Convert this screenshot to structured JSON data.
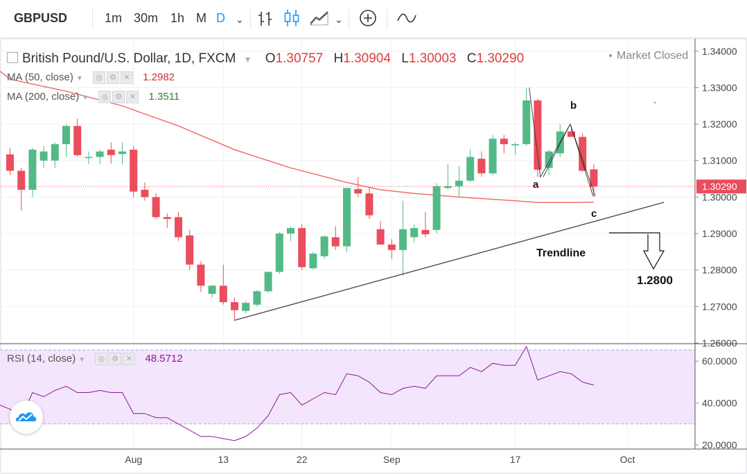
{
  "toolbar": {
    "symbol": "GBPUSD",
    "intervals": [
      "1m",
      "30m",
      "1h",
      "M",
      "D"
    ],
    "active_interval": "D"
  },
  "legend": {
    "title": "British Pound/U.S. Dollar, 1D, FXCM",
    "open_label": "O",
    "open": "1.30757",
    "high_label": "H",
    "high": "1.30904",
    "low_label": "L",
    "low": "1.30003",
    "close_label": "C",
    "close": "1.30290",
    "ma50_label": "MA (50, close)",
    "ma50_value": "1.2982",
    "ma200_label": "MA (200, close)",
    "ma200_value": "1.3511",
    "rsi_label": "RSI (14, close)",
    "rsi_value": "48.5712",
    "market_status": "Market Closed"
  },
  "colors": {
    "up": "#53b987",
    "down": "#eb4d5c",
    "ma": "#f26d6d",
    "rsi": "#8e1599",
    "rsi_band": "#f3e5fb",
    "ma50_text": "#d32f2f",
    "ma200_text": "#2e7d32",
    "rsi_text": "#8e1599"
  },
  "chart_data": {
    "type": "candlestick",
    "price_axis": {
      "ylim": [
        1.26,
        1.343
      ],
      "ticks": [
        "1.34000",
        "1.33000",
        "1.32000",
        "1.31000",
        "1.30000",
        "1.29000",
        "1.28000",
        "1.27000",
        "1.26000"
      ],
      "last_price_label": "1.30290"
    },
    "rsi_axis": {
      "ylim": [
        18,
        68
      ],
      "ticks": [
        "60.0000",
        "40.0000",
        "20.0000"
      ],
      "band": [
        30,
        70
      ]
    },
    "x_axis_ticks": [
      {
        "label": "Aug",
        "i": 11
      },
      {
        "label": "13",
        "i": 19
      },
      {
        "label": "22",
        "i": 26
      },
      {
        "label": "Sep",
        "i": 34
      },
      {
        "label": "17",
        "i": 45
      },
      {
        "label": "Oct",
        "i": 55
      }
    ],
    "candles": [
      {
        "o": 1.3117,
        "h": 1.3135,
        "l": 1.306,
        "c": 1.3072
      },
      {
        "o": 1.3072,
        "h": 1.308,
        "l": 1.2962,
        "c": 1.302
      },
      {
        "o": 1.302,
        "h": 1.3135,
        "l": 1.3,
        "c": 1.313
      },
      {
        "o": 1.31,
        "h": 1.314,
        "l": 1.308,
        "c": 1.3125
      },
      {
        "o": 1.31,
        "h": 1.315,
        "l": 1.308,
        "c": 1.3145
      },
      {
        "o": 1.3145,
        "h": 1.32,
        "l": 1.311,
        "c": 1.3195
      },
      {
        "o": 1.3195,
        "h": 1.3215,
        "l": 1.311,
        "c": 1.3115
      },
      {
        "o": 1.3107,
        "h": 1.3125,
        "l": 1.309,
        "c": 1.311
      },
      {
        "o": 1.311,
        "h": 1.313,
        "l": 1.309,
        "c": 1.3125
      },
      {
        "o": 1.313,
        "h": 1.315,
        "l": 1.3092,
        "c": 1.3115
      },
      {
        "o": 1.3118,
        "h": 1.315,
        "l": 1.309,
        "c": 1.3125
      },
      {
        "o": 1.313,
        "h": 1.314,
        "l": 1.3,
        "c": 1.3015
      },
      {
        "o": 1.302,
        "h": 1.304,
        "l": 1.299,
        "c": 1.3
      },
      {
        "o": 1.3,
        "h": 1.301,
        "l": 1.294,
        "c": 1.2945
      },
      {
        "o": 1.2945,
        "h": 1.2955,
        "l": 1.2915,
        "c": 1.294
      },
      {
        "o": 1.2945,
        "h": 1.296,
        "l": 1.288,
        "c": 1.289
      },
      {
        "o": 1.2895,
        "h": 1.291,
        "l": 1.28,
        "c": 1.2815
      },
      {
        "o": 1.2815,
        "h": 1.2825,
        "l": 1.274,
        "c": 1.2757
      },
      {
        "o": 1.2735,
        "h": 1.276,
        "l": 1.2725,
        "c": 1.2757
      },
      {
        "o": 1.2757,
        "h": 1.2815,
        "l": 1.2705,
        "c": 1.2712
      },
      {
        "o": 1.2712,
        "h": 1.2725,
        "l": 1.266,
        "c": 1.269
      },
      {
        "o": 1.2688,
        "h": 1.2715,
        "l": 1.2682,
        "c": 1.271
      },
      {
        "o": 1.2705,
        "h": 1.2745,
        "l": 1.27,
        "c": 1.2742
      },
      {
        "o": 1.2742,
        "h": 1.2795,
        "l": 1.2738,
        "c": 1.2795
      },
      {
        "o": 1.2795,
        "h": 1.2905,
        "l": 1.279,
        "c": 1.29
      },
      {
        "o": 1.29,
        "h": 1.292,
        "l": 1.288,
        "c": 1.2915
      },
      {
        "o": 1.2915,
        "h": 1.2925,
        "l": 1.28,
        "c": 1.2808
      },
      {
        "o": 1.2805,
        "h": 1.285,
        "l": 1.28,
        "c": 1.2845
      },
      {
        "o": 1.2838,
        "h": 1.2895,
        "l": 1.283,
        "c": 1.2892
      },
      {
        "o": 1.289,
        "h": 1.292,
        "l": 1.2855,
        "c": 1.2865
      },
      {
        "o": 1.2865,
        "h": 1.3025,
        "l": 1.285,
        "c": 1.3025
      },
      {
        "o": 1.3022,
        "h": 1.3055,
        "l": 1.3,
        "c": 1.301
      },
      {
        "o": 1.301,
        "h": 1.3025,
        "l": 1.294,
        "c": 1.295
      },
      {
        "o": 1.2912,
        "h": 1.2935,
        "l": 1.287,
        "c": 1.287
      },
      {
        "o": 1.287,
        "h": 1.2885,
        "l": 1.283,
        "c": 1.2855
      },
      {
        "o": 1.2855,
        "h": 1.299,
        "l": 1.2785,
        "c": 1.2912
      },
      {
        "o": 1.289,
        "h": 1.2925,
        "l": 1.2875,
        "c": 1.2915
      },
      {
        "o": 1.291,
        "h": 1.296,
        "l": 1.289,
        "c": 1.2898
      },
      {
        "o": 1.291,
        "h": 1.3038,
        "l": 1.29,
        "c": 1.303
      },
      {
        "o": 1.3025,
        "h": 1.309,
        "l": 1.302,
        "c": 1.303
      },
      {
        "o": 1.303,
        "h": 1.3085,
        "l": 1.3,
        "c": 1.3045
      },
      {
        "o": 1.3045,
        "h": 1.313,
        "l": 1.304,
        "c": 1.311
      },
      {
        "o": 1.3105,
        "h": 1.3125,
        "l": 1.3055,
        "c": 1.3065
      },
      {
        "o": 1.3065,
        "h": 1.317,
        "l": 1.306,
        "c": 1.316
      },
      {
        "o": 1.316,
        "h": 1.317,
        "l": 1.312,
        "c": 1.3145
      },
      {
        "o": 1.3142,
        "h": 1.315,
        "l": 1.3115,
        "c": 1.3145
      },
      {
        "o": 1.3145,
        "h": 1.33,
        "l": 1.314,
        "c": 1.3265
      },
      {
        "o": 1.3265,
        "h": 1.327,
        "l": 1.3055,
        "c": 1.3075
      },
      {
        "o": 1.308,
        "h": 1.313,
        "l": 1.306,
        "c": 1.3125
      },
      {
        "o": 1.312,
        "h": 1.32,
        "l": 1.311,
        "c": 1.318
      },
      {
        "o": 1.318,
        "h": 1.3195,
        "l": 1.3165,
        "c": 1.3165
      },
      {
        "o": 1.3165,
        "h": 1.3175,
        "l": 1.307,
        "c": 1.3072
      },
      {
        "o": 1.3076,
        "h": 1.309,
        "l": 1.3,
        "c": 1.3029
      }
    ],
    "ma_line": [
      [
        0,
        1.3323
      ],
      [
        5,
        1.329
      ],
      [
        10,
        1.325
      ],
      [
        15,
        1.3195
      ],
      [
        20,
        1.313
      ],
      [
        25,
        1.308
      ],
      [
        30,
        1.304
      ],
      [
        33,
        1.302
      ],
      [
        36,
        1.301
      ],
      [
        40,
        1.3
      ],
      [
        45,
        1.299
      ],
      [
        47,
        1.2985
      ],
      [
        50,
        1.2985
      ],
      [
        52,
        1.2986
      ]
    ],
    "rsi": [
      [
        0,
        37
      ],
      [
        1,
        33
      ],
      [
        2,
        45
      ],
      [
        3,
        43
      ],
      [
        4,
        46
      ],
      [
        5,
        48
      ],
      [
        6,
        45
      ],
      [
        7,
        45
      ],
      [
        8,
        46
      ],
      [
        9,
        45
      ],
      [
        10,
        45
      ],
      [
        11,
        35
      ],
      [
        12,
        35
      ],
      [
        13,
        33
      ],
      [
        14,
        33
      ],
      [
        15,
        30
      ],
      [
        16,
        27
      ],
      [
        17,
        24
      ],
      [
        18,
        24
      ],
      [
        19,
        23
      ],
      [
        20,
        22
      ],
      [
        21,
        24
      ],
      [
        22,
        28
      ],
      [
        23,
        34
      ],
      [
        24,
        44
      ],
      [
        25,
        45
      ],
      [
        26,
        39
      ],
      [
        27,
        42
      ],
      [
        28,
        45
      ],
      [
        29,
        44
      ],
      [
        30,
        54
      ],
      [
        31,
        53
      ],
      [
        32,
        50
      ],
      [
        33,
        45
      ],
      [
        34,
        44
      ],
      [
        35,
        47
      ],
      [
        36,
        48
      ],
      [
        37,
        47
      ],
      [
        38,
        53
      ],
      [
        39,
        53
      ],
      [
        40,
        53
      ],
      [
        41,
        57
      ],
      [
        42,
        55
      ],
      [
        43,
        59
      ],
      [
        44,
        58
      ],
      [
        45,
        58
      ],
      [
        46,
        67
      ],
      [
        47,
        51
      ],
      [
        48,
        53
      ],
      [
        49,
        55
      ],
      [
        50,
        54
      ],
      [
        51,
        50
      ],
      [
        52,
        48.6
      ]
    ],
    "annotations": {
      "wave_labels": [
        "a",
        "b",
        "c"
      ],
      "trendline_label": "Trendline",
      "target_label": "1.2800"
    }
  }
}
